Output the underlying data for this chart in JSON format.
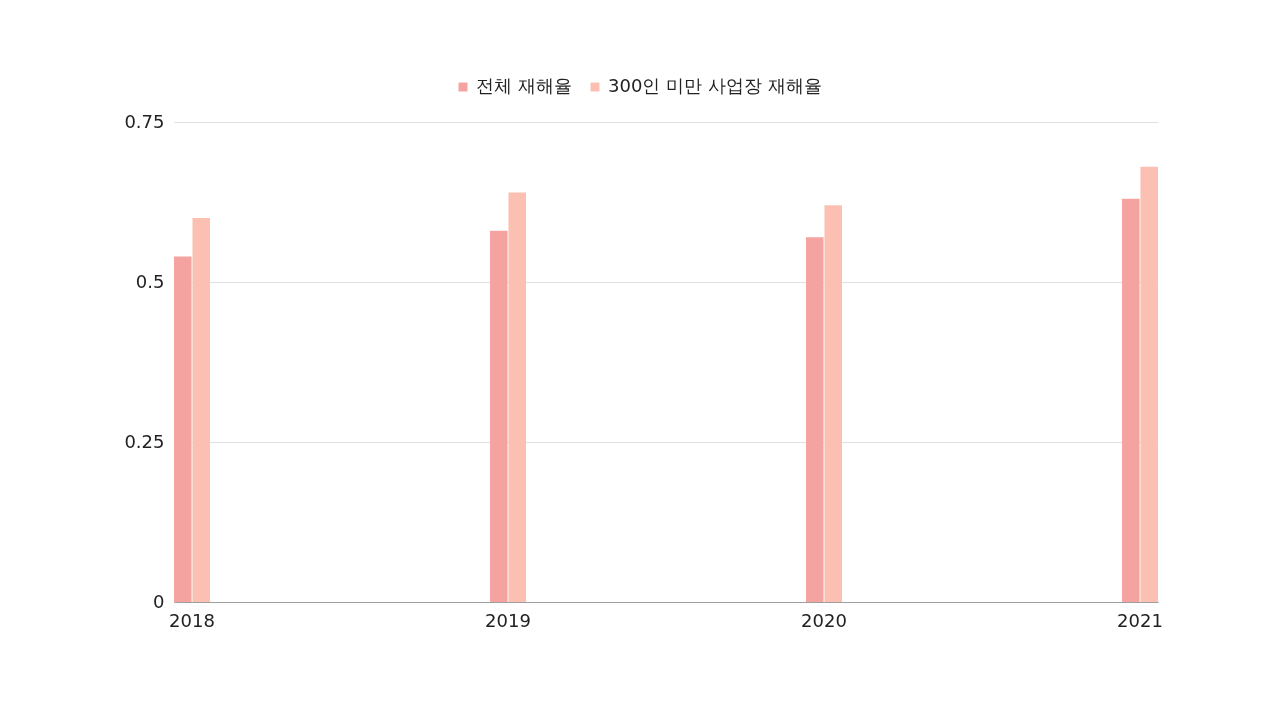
{
  "chart_data": {
    "type": "bar",
    "categories": [
      "2018",
      "2019",
      "2020",
      "2021"
    ],
    "series": [
      {
        "name": "전체 재해율",
        "color": "#f4a3a0",
        "values": [
          0.54,
          0.58,
          0.57,
          0.63
        ]
      },
      {
        "name": "300인 미만 사업장 재해율",
        "color": "#fcc0b3",
        "values": [
          0.6,
          0.64,
          0.62,
          0.68
        ]
      }
    ],
    "ylim": [
      0,
      0.75
    ],
    "yticks": [
      0,
      0.25,
      0.5,
      0.75
    ],
    "grid": "y",
    "legend": "top"
  }
}
